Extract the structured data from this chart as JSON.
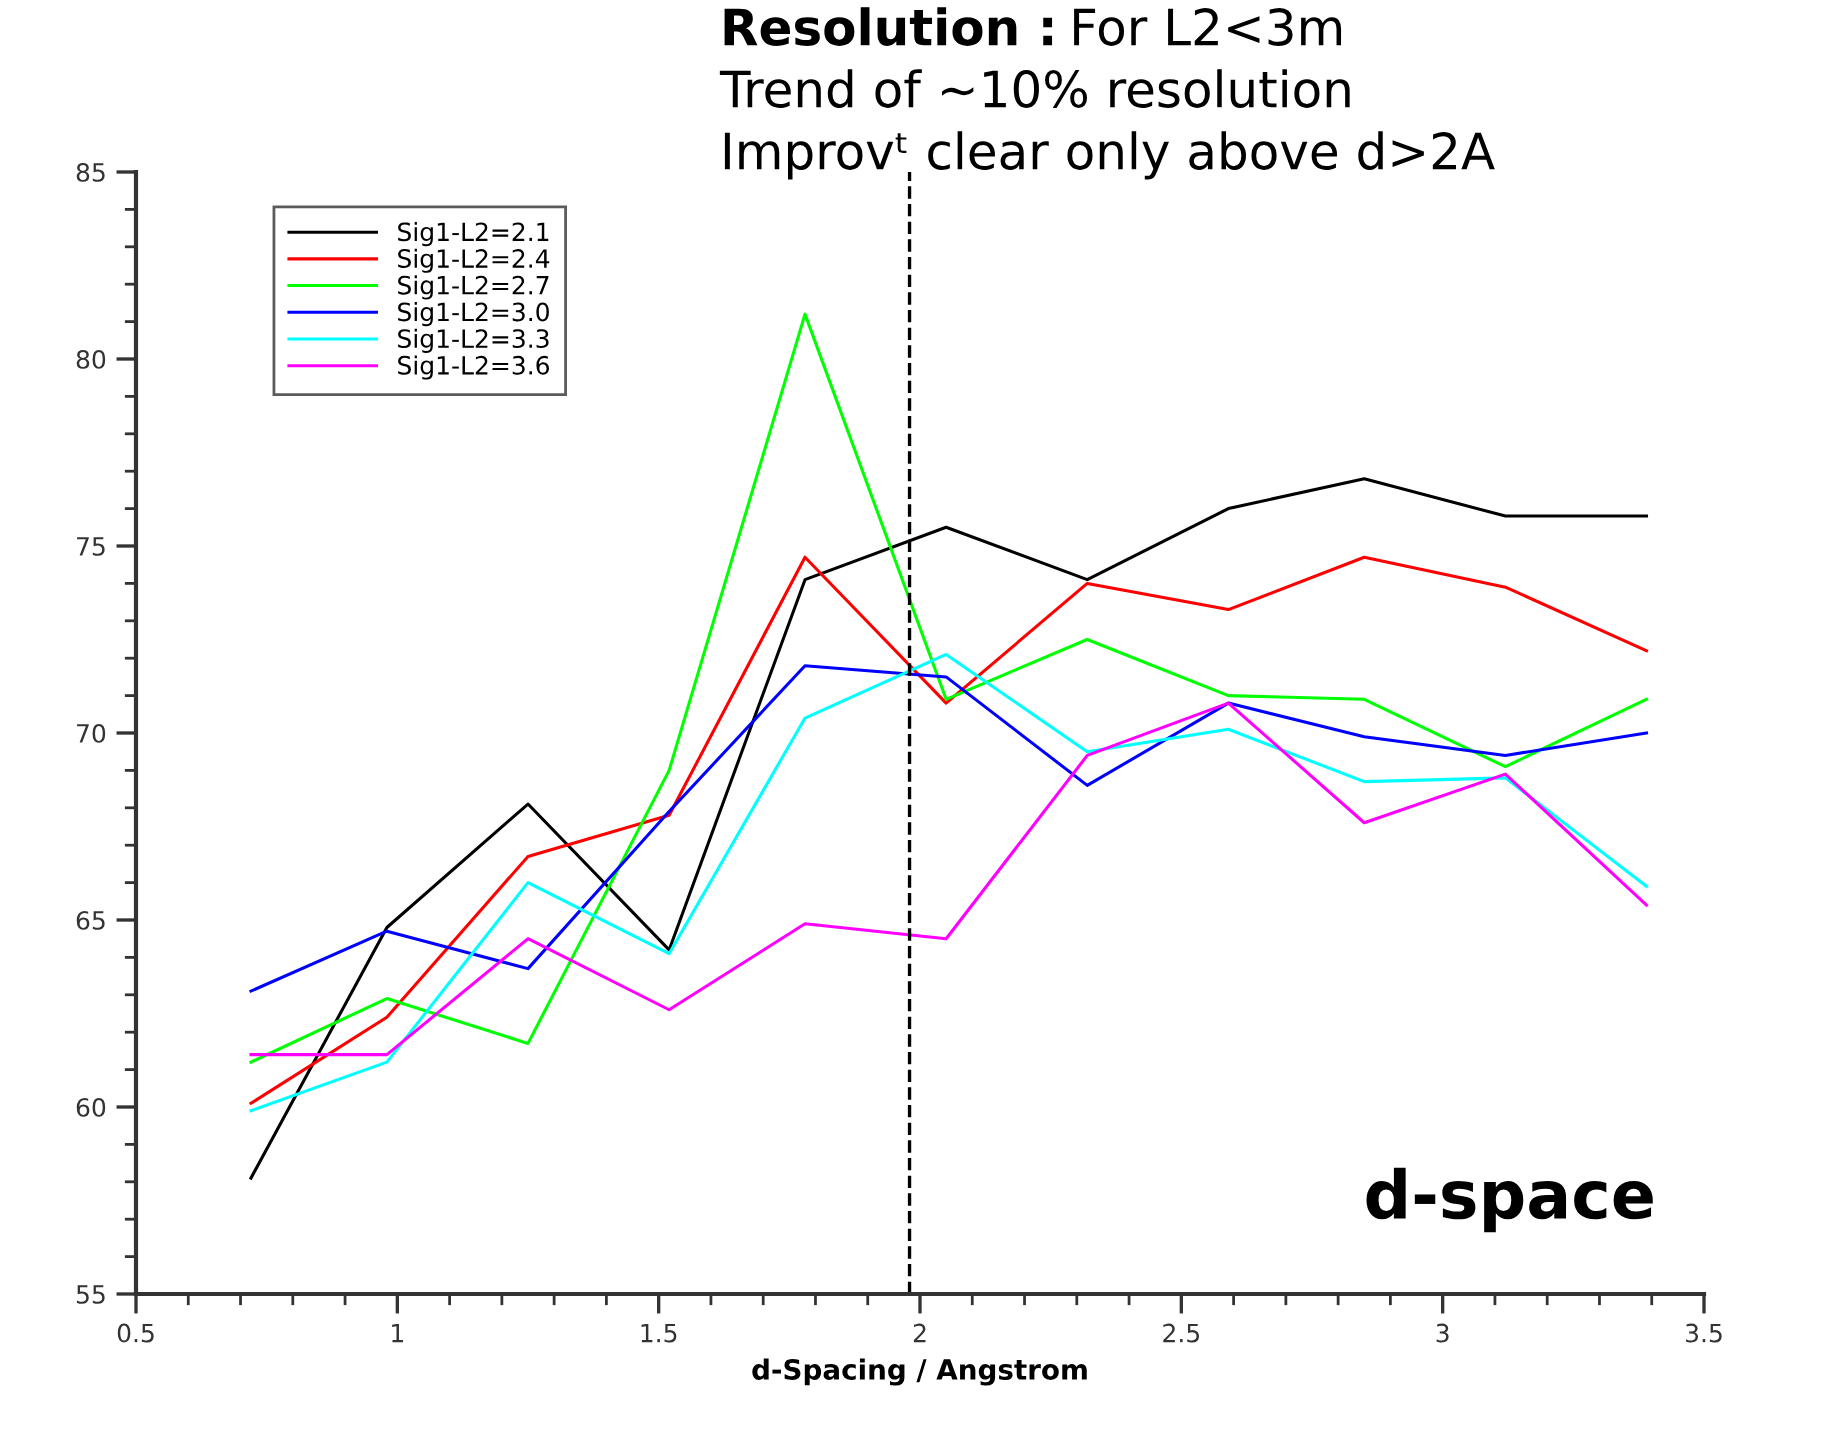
{
  "chart_data": {
    "type": "line",
    "xlabel": "d-Spacing / Angstrom",
    "x": [
      0.72,
      0.98,
      1.25,
      1.52,
      1.78,
      2.05,
      2.32,
      2.59,
      2.85,
      3.12,
      3.39
    ],
    "series": [
      {
        "name": "Sig1-L2=2.1",
        "color": "#000000",
        "values": [
          58.1,
          64.8,
          68.1,
          64.2,
          74.1,
          75.5,
          74.1,
          76.0,
          76.8,
          75.8,
          75.8
        ]
      },
      {
        "name": "Sig1-L2=2.4",
        "color": "#ff0000",
        "values": [
          60.1,
          62.4,
          66.7,
          67.8,
          74.7,
          70.8,
          74.0,
          73.3,
          74.7,
          73.9,
          72.2
        ]
      },
      {
        "name": "Sig1-L2=2.7",
        "color": "#00ff00",
        "values": [
          61.2,
          62.9,
          61.7,
          69.0,
          81.2,
          70.9,
          72.5,
          71.0,
          70.9,
          69.1,
          70.9
        ]
      },
      {
        "name": "Sig1-L2=3.0",
        "color": "#0000ff",
        "values": [
          63.1,
          64.7,
          63.7,
          67.9,
          71.8,
          71.5,
          68.6,
          70.8,
          69.9,
          69.4,
          70.0
        ]
      },
      {
        "name": "Sig1-L2=3.3",
        "color": "#00ffff",
        "values": [
          59.9,
          61.2,
          66.0,
          64.1,
          70.4,
          72.1,
          69.5,
          70.1,
          68.7,
          68.8,
          65.9
        ]
      },
      {
        "name": "Sig1-L2=3.6",
        "color": "#ff00ff",
        "values": [
          61.4,
          61.4,
          64.5,
          62.6,
          64.9,
          64.5,
          69.4,
          70.8,
          67.6,
          68.9,
          65.4
        ]
      }
    ],
    "xlim": [
      0.5,
      3.5
    ],
    "xticks": [
      0.5,
      1,
      1.5,
      2,
      2.5,
      3,
      3.5
    ],
    "ylim": [
      55,
      85
    ],
    "yticks": [
      55,
      60,
      65,
      70,
      75,
      80,
      85
    ],
    "ref_lines": [
      {
        "axis": "x",
        "value": 1.98,
        "color": "#000000",
        "line_style": "dashed"
      }
    ],
    "annotations": [
      "Resolution : For L2<3m",
      "Trend of ~10% resolution",
      "Improvᵗ clear only above d>2A",
      "d-space"
    ],
    "grid": false,
    "legend": "top left",
    "marker": "none",
    "line_style": "solid"
  }
}
